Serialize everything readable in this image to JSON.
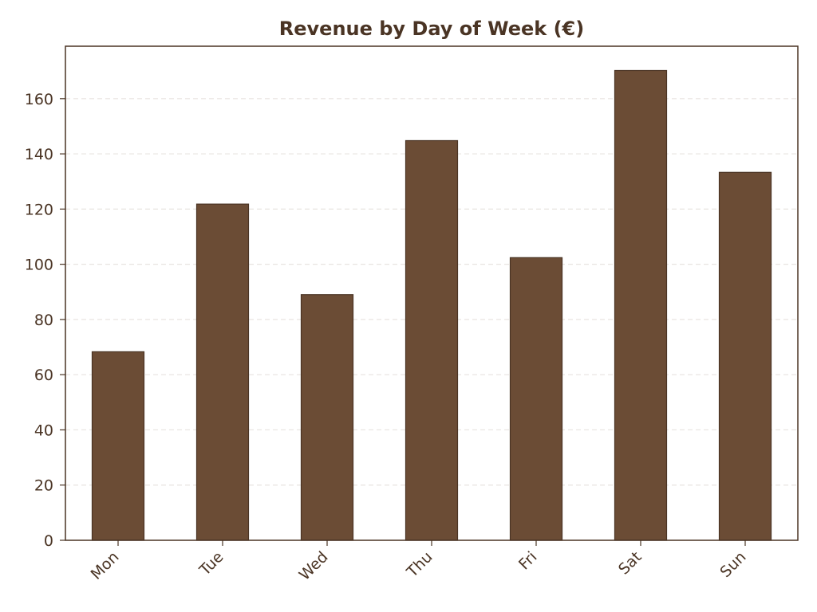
{
  "chart_data": {
    "type": "bar",
    "title": "Revenue by Day of Week (€)",
    "xlabel": "",
    "ylabel": "",
    "categories": [
      "Mon",
      "Tue",
      "Wed",
      "Thu",
      "Fri",
      "Sat",
      "Sun"
    ],
    "values": [
      68.3,
      121.8,
      89.0,
      144.8,
      102.4,
      170.2,
      133.3
    ],
    "ylim": [
      0,
      179
    ],
    "yticks": [
      0,
      20,
      40,
      60,
      80,
      100,
      120,
      140,
      160
    ],
    "grid": "horizontal dashed",
    "legend": "none"
  },
  "colors": {
    "bar_fill": "#6b4c35",
    "bar_edge": "#4a3424",
    "text": "#4a3424",
    "axis": "#4a3424",
    "grid": "#e8e4e0"
  }
}
